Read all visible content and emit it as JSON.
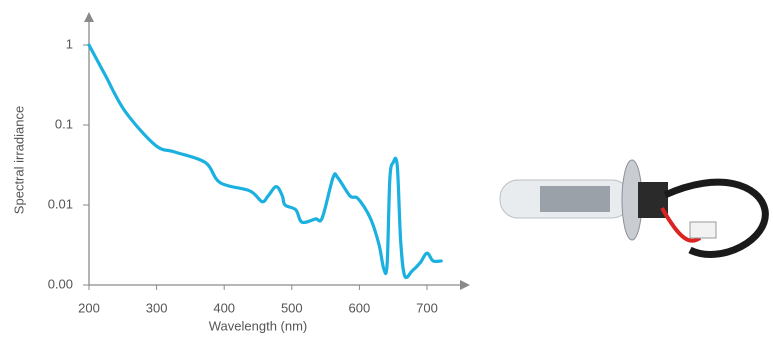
{
  "chart_data": {
    "type": "line",
    "xlabel": "Wavelength (nm)",
    "ylabel": "Spectral irradiance",
    "x": [
      200,
      224,
      253,
      298,
      327,
      372,
      394,
      438,
      456,
      465,
      477,
      486,
      490,
      506,
      515,
      535,
      545,
      561,
      568,
      586,
      598,
      616,
      629,
      636,
      641,
      645,
      650,
      656,
      661,
      667,
      678,
      690,
      700,
      709,
      721
    ],
    "series": [
      {
        "name": "Spectral irradiance",
        "color": "#1ab0e0",
        "values": [
          1,
          0.42,
          0.15,
          0.056,
          0.046,
          0.034,
          0.019,
          0.015,
          0.011,
          0.013,
          0.017,
          0.013,
          0.01,
          0.0087,
          0.0061,
          0.0067,
          0.0069,
          0.022,
          0.022,
          0.013,
          0.012,
          0.0069,
          0.0032,
          0.0016,
          0.0018,
          0.021,
          0.034,
          0.031,
          0.0036,
          0.0013,
          0.0015,
          0.0019,
          0.0025,
          0.002,
          0.002
        ]
      }
    ],
    "xlim": [
      200,
      700
    ],
    "xticks": [
      200,
      300,
      400,
      500,
      600,
      700
    ],
    "ylim": [
      0.001,
      1
    ],
    "yticks": [
      1,
      0.1,
      0.01,
      {
        "value": 0.001,
        "label": "0.00"
      }
    ],
    "log_y": true
  }
}
